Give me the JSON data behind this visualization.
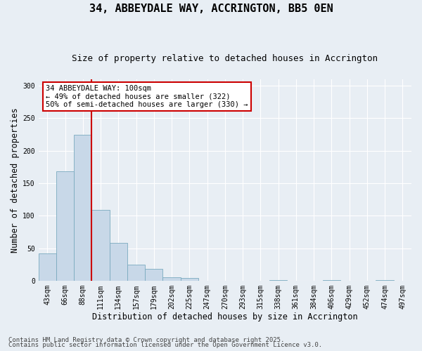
{
  "title1": "34, ABBEYDALE WAY, ACCRINGTON, BB5 0EN",
  "title2": "Size of property relative to detached houses in Accrington",
  "xlabel": "Distribution of detached houses by size in Accrington",
  "ylabel": "Number of detached properties",
  "categories": [
    "43sqm",
    "66sqm",
    "88sqm",
    "111sqm",
    "134sqm",
    "157sqm",
    "179sqm",
    "202sqm",
    "225sqm",
    "247sqm",
    "270sqm",
    "293sqm",
    "315sqm",
    "338sqm",
    "361sqm",
    "384sqm",
    "406sqm",
    "429sqm",
    "452sqm",
    "474sqm",
    "497sqm"
  ],
  "values": [
    42,
    168,
    224,
    109,
    58,
    25,
    19,
    6,
    5,
    0,
    0,
    0,
    0,
    1,
    0,
    0,
    1,
    0,
    0,
    1,
    0
  ],
  "bar_color": "#c8d8e8",
  "bar_edge_color": "#7aaabf",
  "annotation_text": "34 ABBEYDALE WAY: 100sqm\n← 49% of detached houses are smaller (322)\n50% of semi-detached houses are larger (330) →",
  "annotation_box_color": "#ffffff",
  "annotation_box_edge_color": "#cc0000",
  "vline_color": "#cc0000",
  "vline_x": 2.5,
  "ylim": [
    0,
    310
  ],
  "yticks": [
    0,
    50,
    100,
    150,
    200,
    250,
    300
  ],
  "bg_color": "#e8eef4",
  "footer1": "Contains HM Land Registry data © Crown copyright and database right 2025.",
  "footer2": "Contains public sector information licensed under the Open Government Licence v3.0.",
  "title1_fontsize": 11,
  "title2_fontsize": 9,
  "xlabel_fontsize": 8.5,
  "ylabel_fontsize": 8.5,
  "tick_fontsize": 7,
  "footer_fontsize": 6.5,
  "annot_fontsize": 7.5
}
